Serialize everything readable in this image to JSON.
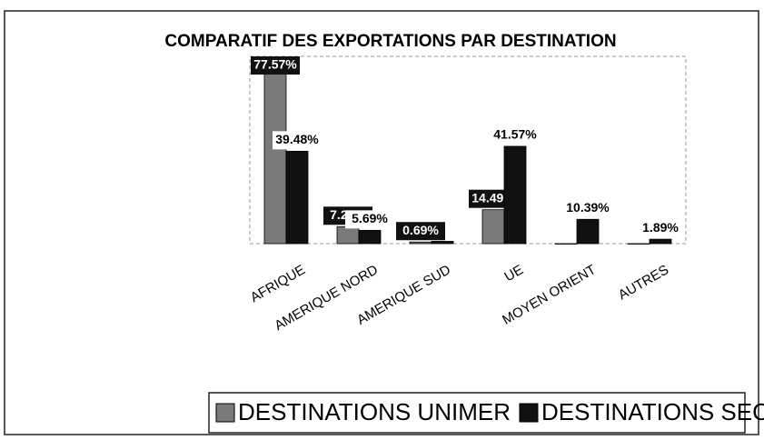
{
  "chart_data": {
    "type": "bar",
    "title": "COMPARATIF DES EXPORTATIONS PAR DESTINATION",
    "categories": [
      "AFRIQUE",
      "AMERIQUE NORD",
      "AMERIQUE SUD",
      "UE",
      "MOYEN ORIENT",
      "AUTRES"
    ],
    "series": [
      {
        "name": "DESTINATIONS UNIMER",
        "color": "#7a7a7a",
        "values": [
          77.57,
          7.26,
          0.69,
          14.49,
          0,
          0
        ],
        "value_labels": [
          "77.57%",
          "7.26%",
          "0.69%",
          "14.49%",
          null,
          null
        ]
      },
      {
        "name": "DESTINATIONS SECTEUR",
        "color": "#111111",
        "values": [
          39.48,
          5.69,
          0.98,
          41.57,
          10.39,
          1.89
        ],
        "value_labels": [
          "39.48%",
          "5.69%",
          null,
          "41.57%",
          "10.39%",
          "1.89%"
        ]
      }
    ],
    "ylim": [
      0,
      80
    ]
  }
}
